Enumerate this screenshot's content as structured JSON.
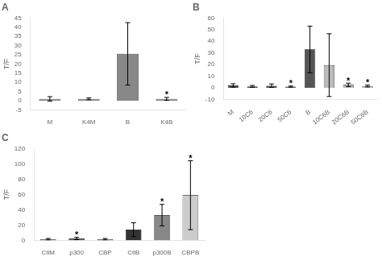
{
  "chart_data": [
    {
      "type": "bar",
      "title": "A",
      "categories": [
        "M",
        "K4M",
        "B",
        "K4B"
      ],
      "values": [
        1.0,
        1.0,
        25.5,
        1.0
      ],
      "errors": [
        1.2,
        0.5,
        17.0,
        0.8
      ],
      "colors": [
        "#888888",
        "#888888",
        "#888888",
        "#888888"
      ],
      "ylabel": "T/F",
      "ylim": [
        -5,
        45
      ],
      "yticks": [
        -5,
        0,
        5,
        10,
        15,
        20,
        25,
        30,
        35,
        40,
        45
      ],
      "grid": false,
      "annotations": [
        {
          "category": "K4B",
          "text": "*"
        }
      ]
    },
    {
      "type": "bar",
      "title": "B",
      "categories": [
        "M",
        "10C6",
        "20C6",
        "50C6",
        "B",
        "10C6B",
        "20C6B",
        "50C6B"
      ],
      "values": [
        2.0,
        1.2,
        1.8,
        1.0,
        33.0,
        19.5,
        2.5,
        1.5
      ],
      "errors": [
        1.5,
        0.8,
        1.5,
        0.5,
        20.0,
        27.0,
        1.5,
        0.8
      ],
      "colors": [
        "#555555",
        "#555555",
        "#555555",
        "#555555",
        "#555555",
        "#bbbbbb",
        "#bbbbbb",
        "#bbbbbb"
      ],
      "ylabel": "T/F",
      "ylim": [
        -10,
        60
      ],
      "yticks": [
        -10,
        0,
        10,
        20,
        30,
        40,
        50,
        60
      ],
      "grid": false,
      "annotations": [
        {
          "category": "50C6",
          "text": "*"
        },
        {
          "category": "20C6B",
          "text": "*"
        },
        {
          "category": "50C6B",
          "text": "*"
        }
      ]
    },
    {
      "type": "bar",
      "title": "C",
      "categories": [
        "CtlM",
        "p300",
        "CBP",
        "CtlB",
        "p300B",
        "CBPB"
      ],
      "values": [
        1.5,
        2.5,
        1.5,
        14.0,
        33.0,
        59.0
      ],
      "errors": [
        1.0,
        1.5,
        1.0,
        9.0,
        14.0,
        45.0
      ],
      "colors": [
        "#666666",
        "#666666",
        "#666666",
        "#333333",
        "#888888",
        "#cccccc"
      ],
      "ylabel": "T/F",
      "ylim": [
        0,
        120
      ],
      "yticks": [
        0,
        20,
        40,
        60,
        80,
        100,
        120
      ],
      "grid": false,
      "annotations": [
        {
          "category": "p300",
          "text": "*"
        },
        {
          "category": "p300B",
          "text": "*"
        },
        {
          "category": "CBPB",
          "text": "*"
        }
      ]
    }
  ]
}
